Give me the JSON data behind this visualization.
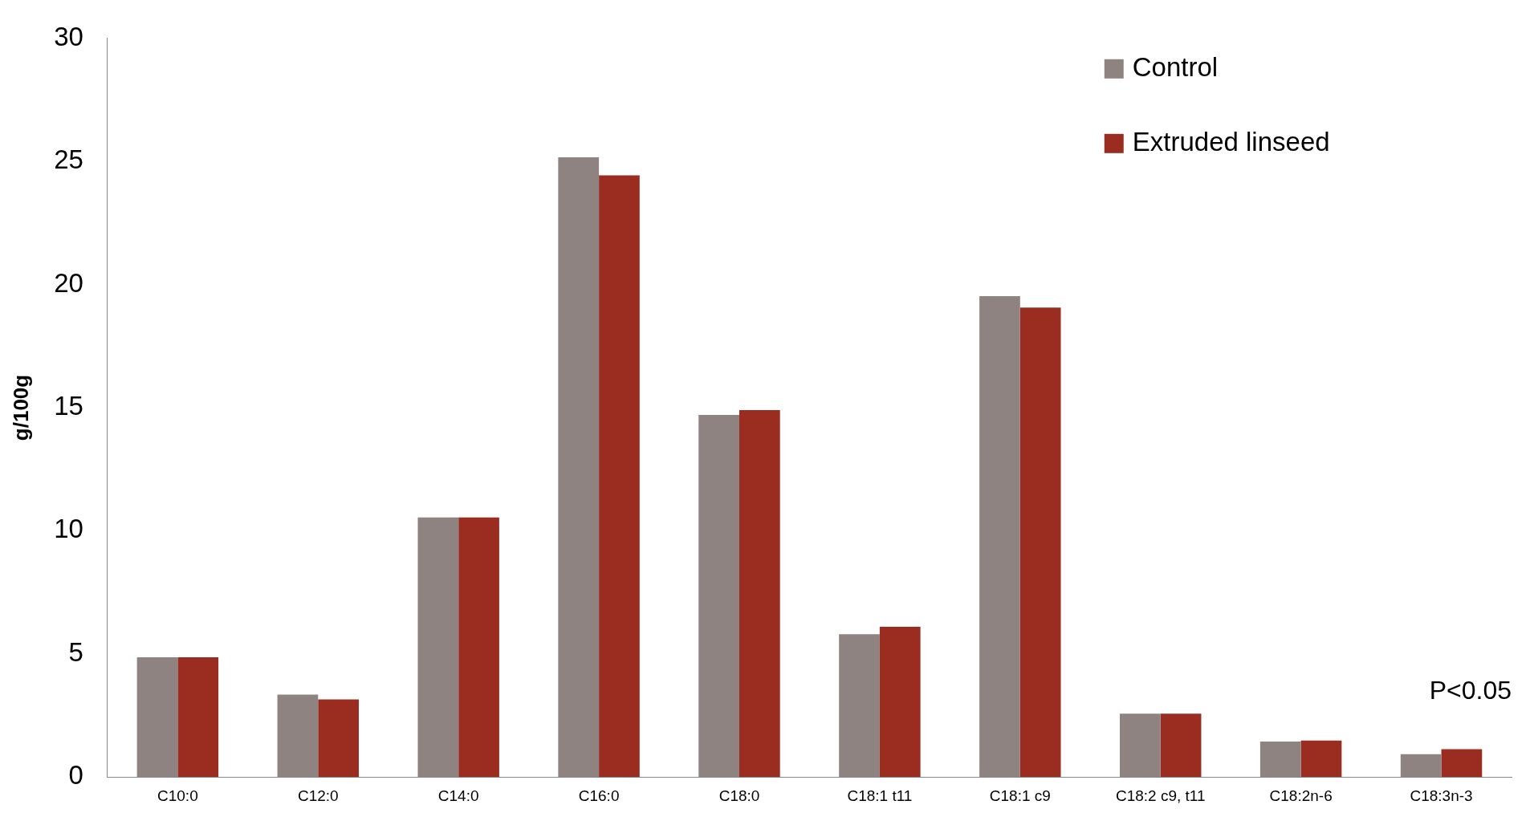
{
  "chart_data": {
    "type": "bar",
    "ylabel": "g/100g",
    "categories": [
      "C10:0",
      "C12:0",
      "C14:0",
      "C16:0",
      "C18:0",
      "C18:1 t11",
      "C18:1 c9",
      "C18:2 c9, t11",
      "C18:2n-6",
      "C18:3n-3"
    ],
    "series": [
      {
        "name": "Control",
        "color": "#8f8382",
        "values": [
          4.86,
          3.35,
          10.54,
          25.17,
          14.71,
          5.8,
          19.53,
          2.57,
          1.44,
          0.93
        ]
      },
      {
        "name": "Extruded linseed",
        "color": "#9b2d20",
        "values": [
          4.86,
          3.15,
          10.54,
          24.44,
          14.9,
          6.1,
          19.07,
          2.57,
          1.48,
          1.13
        ]
      }
    ],
    "ylim": [
      0,
      30
    ],
    "yticks": [
      0,
      5,
      10,
      15,
      20,
      25,
      30
    ],
    "grid": false,
    "legend": "top right",
    "annotations": [
      "P<0.05"
    ]
  }
}
